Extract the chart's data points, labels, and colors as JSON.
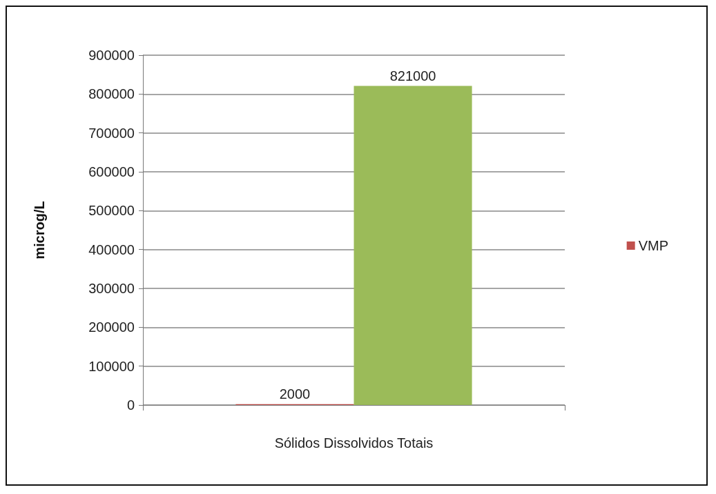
{
  "chart_data": {
    "type": "bar",
    "ylabel": "microg/L",
    "categories": [
      "Sólidos Dissolvidos Totais"
    ],
    "series": [
      {
        "name": "VMP",
        "color": "#c0504d",
        "values": [
          2000
        ]
      },
      {
        "color": "#9bbb59",
        "values": [
          821000
        ]
      }
    ],
    "ylim": [
      0,
      900000
    ],
    "yticks": [
      0,
      100000,
      200000,
      300000,
      400000,
      500000,
      600000,
      700000,
      800000,
      900000
    ],
    "grid": "y",
    "legend": "right",
    "data_labels": true
  }
}
